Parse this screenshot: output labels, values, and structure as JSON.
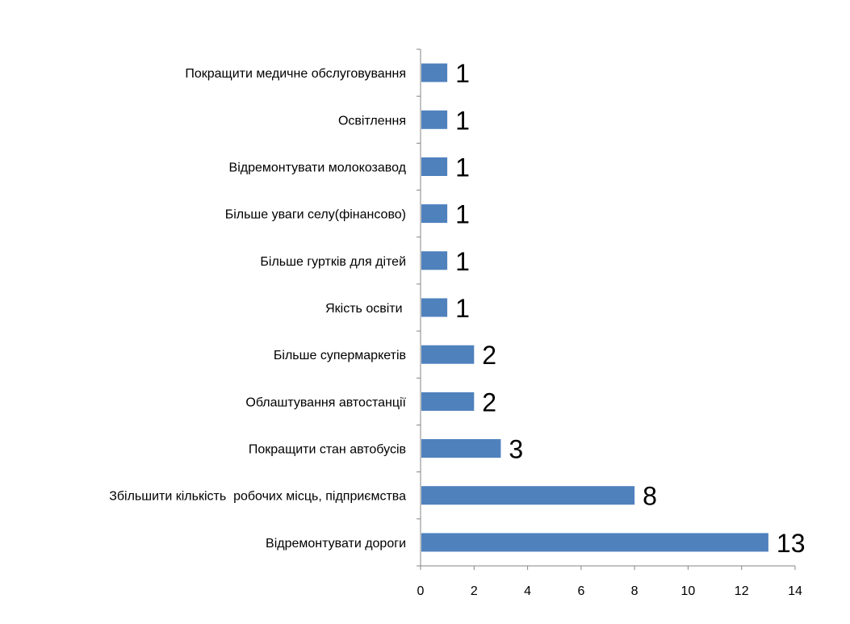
{
  "chart_data": {
    "type": "bar",
    "orientation": "horizontal",
    "categories": [
      "Покращити медичне обслуговування",
      "Освітлення",
      "Відремонтувати молокозавод",
      "Більше уваги селу(фінансово)",
      "Більше гуртків для дітей",
      "Якість освіти ",
      "Більше супермаркетів",
      "Облаштування автостанції",
      "Покращити стан автобусів",
      "Збільшити кількість  робочих місць, підприємства",
      "Відремонтувати дороги"
    ],
    "values": [
      1,
      1,
      1,
      1,
      1,
      1,
      2,
      2,
      3,
      8,
      13
    ],
    "data_labels": [
      "1",
      "1",
      "1",
      "1",
      "1",
      "1",
      "2",
      "2",
      "3",
      "8",
      "13"
    ],
    "x_ticks": [
      "0",
      "2",
      "4",
      "6",
      "8",
      "10",
      "12",
      "14"
    ],
    "xlim": [
      0,
      14
    ],
    "grid": false,
    "legend": "none",
    "bar_color": "#4f81bd"
  }
}
